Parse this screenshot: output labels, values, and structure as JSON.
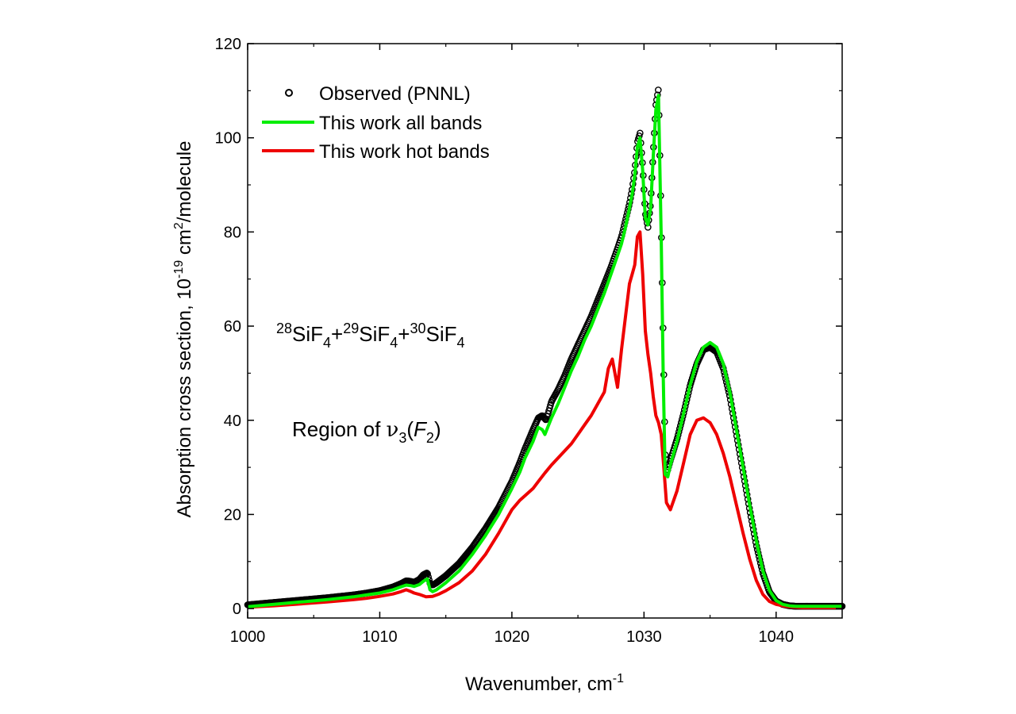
{
  "chart_data": {
    "type": "line",
    "title": "",
    "xlabel": {
      "text": "Wavenumber, cm",
      "sup": "-1"
    },
    "ylabel": {
      "pre": "Absorption cross section, 10",
      "sup1": "-19",
      "mid": " cm",
      "sup2": "2",
      "post": "/molecule"
    },
    "xlim": [
      1000,
      1045
    ],
    "ylim": [
      -2,
      120
    ],
    "xticks": [
      1000,
      1010,
      1020,
      1030,
      1040
    ],
    "xtick_labels": [
      "1000",
      "1010",
      "1020",
      "1030",
      "1040"
    ],
    "yticks": [
      0,
      20,
      40,
      60,
      80,
      100,
      120
    ],
    "ytick_labels": [
      "0",
      "20",
      "40",
      "60",
      "80",
      "100",
      "120"
    ],
    "grid": false,
    "legend_position": "top-left",
    "legend": [
      {
        "label": "Observed (PNNL)",
        "marker": "open-circle",
        "color": "#000000"
      },
      {
        "label": "This work all bands",
        "marker": "line",
        "color": "#00ee00"
      },
      {
        "label": "This work hot bands",
        "marker": "line",
        "color": "#ee0000"
      }
    ],
    "annotations": {
      "species": {
        "i1": "28",
        "el1": "SiF",
        "s1": "4",
        "plus1": "+",
        "i2": "29",
        "el2": "SiF",
        "s2": "4",
        "plus2": "+",
        "i3": "30",
        "el3": "SiF",
        "s3": "4"
      },
      "region": {
        "pre": "Region of ",
        "nu": "ν",
        "sub": "3",
        "open": "(",
        "F": "F",
        "Fsub": "2",
        "close": ")"
      }
    },
    "series": [
      {
        "name": "Observed (PNNL)",
        "style": "open-circle",
        "color": "#000000",
        "x": [
          1000,
          1002,
          1004,
          1006,
          1008,
          1009,
          1010,
          1011,
          1011.6,
          1012,
          1012.3,
          1012.6,
          1013,
          1013.3,
          1013.6,
          1013.8,
          1014,
          1014.3,
          1015,
          1016,
          1017,
          1018,
          1019,
          1020,
          1020.6,
          1021,
          1021.6,
          1022,
          1022.3,
          1022.6,
          1023,
          1023.5,
          1024,
          1024.5,
          1025,
          1025.5,
          1026,
          1026.5,
          1027,
          1027.5,
          1028,
          1028.3,
          1028.6,
          1028.9,
          1029.1,
          1029.3,
          1029.5,
          1029.7,
          1029.9,
          1030.1,
          1030.3,
          1030.5,
          1030.7,
          1030.9,
          1031.1,
          1031.3,
          1031.45,
          1031.6,
          1031.8,
          1032,
          1032.5,
          1033,
          1033.5,
          1034,
          1034.5,
          1035,
          1035.5,
          1036,
          1036.5,
          1037,
          1037.5,
          1038,
          1038.5,
          1039,
          1039.5,
          1040,
          1040.5,
          1041,
          1041.5,
          1042,
          1043,
          1044,
          1045
        ],
        "y": [
          0.8,
          1.3,
          1.8,
          2.3,
          2.9,
          3.3,
          3.8,
          4.6,
          5.3,
          5.9,
          5.8,
          5.6,
          6.2,
          7.2,
          7.6,
          5.4,
          5.0,
          5.5,
          7.0,
          9.6,
          13.0,
          17.0,
          21.5,
          27.0,
          31.0,
          34.0,
          38.0,
          40.5,
          41.0,
          40.0,
          44.0,
          46.5,
          49.5,
          53.0,
          56.0,
          59.0,
          62.0,
          65.5,
          69.0,
          72.5,
          76.5,
          79.0,
          82.5,
          86.0,
          89.0,
          93.0,
          99.0,
          101.0,
          94.0,
          84.0,
          81.0,
          86.0,
          97.0,
          107.0,
          110.5,
          82.0,
          58.0,
          33.0,
          29.5,
          31.5,
          36.0,
          41.5,
          47.5,
          52.0,
          55.0,
          55.5,
          54.5,
          51.0,
          45.0,
          37.0,
          29.0,
          21.0,
          13.5,
          7.5,
          3.5,
          1.6,
          0.9,
          0.6,
          0.5,
          0.5,
          0.5,
          0.5,
          0.5
        ]
      },
      {
        "name": "This work all bands",
        "style": "line",
        "color": "#00ee00",
        "x": [
          1000,
          1002,
          1004,
          1006,
          1008,
          1009,
          1010,
          1011,
          1011.6,
          1012,
          1012.3,
          1012.6,
          1013,
          1013.3,
          1013.6,
          1013.8,
          1014,
          1014.3,
          1015,
          1016,
          1017,
          1018,
          1019,
          1020,
          1020.6,
          1021,
          1021.6,
          1022,
          1022.3,
          1022.5,
          1023,
          1023.5,
          1024,
          1024.5,
          1025,
          1025.5,
          1026,
          1026.5,
          1027,
          1027.5,
          1028,
          1028.3,
          1028.6,
          1028.9,
          1029.1,
          1029.3,
          1029.5,
          1029.7,
          1029.9,
          1030.1,
          1030.3,
          1030.5,
          1030.7,
          1030.9,
          1031.1,
          1031.3,
          1031.45,
          1031.6,
          1031.8,
          1032,
          1032.5,
          1033,
          1033.5,
          1034,
          1034.5,
          1035,
          1035.5,
          1036,
          1036.5,
          1037,
          1037.5,
          1038,
          1038.5,
          1039,
          1039.5,
          1040,
          1040.5,
          1041,
          1041.5,
          1042,
          1043,
          1044,
          1045
        ],
        "y": [
          0.4,
          0.9,
          1.4,
          1.9,
          2.5,
          2.9,
          3.3,
          4.0,
          4.6,
          5.0,
          4.9,
          4.7,
          5.1,
          5.8,
          6.3,
          4.0,
          3.6,
          4.0,
          5.5,
          8.0,
          11.5,
          15.5,
          20.0,
          25.5,
          29.0,
          32.0,
          35.5,
          38.5,
          38.0,
          37.0,
          40.5,
          43.5,
          47.0,
          50.5,
          53.5,
          57.0,
          60.0,
          63.5,
          67.0,
          71.0,
          75.0,
          77.5,
          81.0,
          85.0,
          88.0,
          92.0,
          98.0,
          100.0,
          93.0,
          83.0,
          81.5,
          85.0,
          96.0,
          106.0,
          109.0,
          79.0,
          50.0,
          28.5,
          28.0,
          30.5,
          35.5,
          41.5,
          47.5,
          52.5,
          55.5,
          56.5,
          55.5,
          52.0,
          46.0,
          38.0,
          30.0,
          22.0,
          14.5,
          8.0,
          3.8,
          1.7,
          0.9,
          0.6,
          0.5,
          0.5,
          0.5,
          0.5,
          0.5
        ]
      },
      {
        "name": "This work hot bands",
        "style": "line",
        "color": "#ee0000",
        "x": [
          1000,
          1002,
          1004,
          1006,
          1008,
          1009,
          1010,
          1011,
          1011.6,
          1012,
          1012.3,
          1012.6,
          1013,
          1013.5,
          1014,
          1014.5,
          1015,
          1016,
          1017,
          1018,
          1019,
          1020,
          1020.6,
          1021,
          1021.6,
          1022,
          1022.5,
          1023,
          1023.5,
          1024,
          1024.5,
          1025,
          1025.5,
          1026,
          1026.5,
          1027,
          1027.3,
          1027.6,
          1028,
          1028.3,
          1028.6,
          1028.9,
          1029.1,
          1029.3,
          1029.5,
          1029.7,
          1029.9,
          1030.1,
          1030.3,
          1030.5,
          1030.7,
          1030.9,
          1031.1,
          1031.3,
          1031.5,
          1031.7,
          1032,
          1032.5,
          1033,
          1033.5,
          1034,
          1034.5,
          1035,
          1035.5,
          1036,
          1036.5,
          1037,
          1037.5,
          1038,
          1038.5,
          1039,
          1039.5,
          1040,
          1040.5,
          1041,
          1041.5,
          1042,
          1043,
          1044,
          1045
        ],
        "y": [
          0.3,
          0.6,
          1.0,
          1.4,
          1.9,
          2.2,
          2.6,
          3.1,
          3.6,
          4.0,
          3.7,
          3.3,
          3.0,
          2.5,
          2.6,
          3.1,
          3.8,
          5.5,
          8.0,
          11.5,
          16.0,
          21.0,
          23.0,
          24.0,
          25.5,
          27.0,
          28.8,
          30.5,
          32.0,
          33.5,
          35.0,
          37.0,
          39.0,
          41.0,
          43.5,
          46.0,
          51.0,
          53.0,
          47.0,
          55.0,
          62.0,
          69.0,
          71.0,
          73.0,
          79.0,
          80.0,
          71.0,
          59.0,
          54.0,
          50.0,
          45.0,
          41.0,
          39.5,
          37.0,
          30.0,
          22.5,
          21.0,
          25.0,
          31.0,
          37.0,
          40.0,
          40.5,
          39.5,
          37.0,
          33.0,
          28.0,
          22.0,
          16.0,
          10.5,
          6.0,
          3.0,
          1.5,
          0.9,
          0.6,
          0.4,
          0.3,
          0.2,
          0.2,
          0.2,
          0.2
        ]
      }
    ]
  }
}
